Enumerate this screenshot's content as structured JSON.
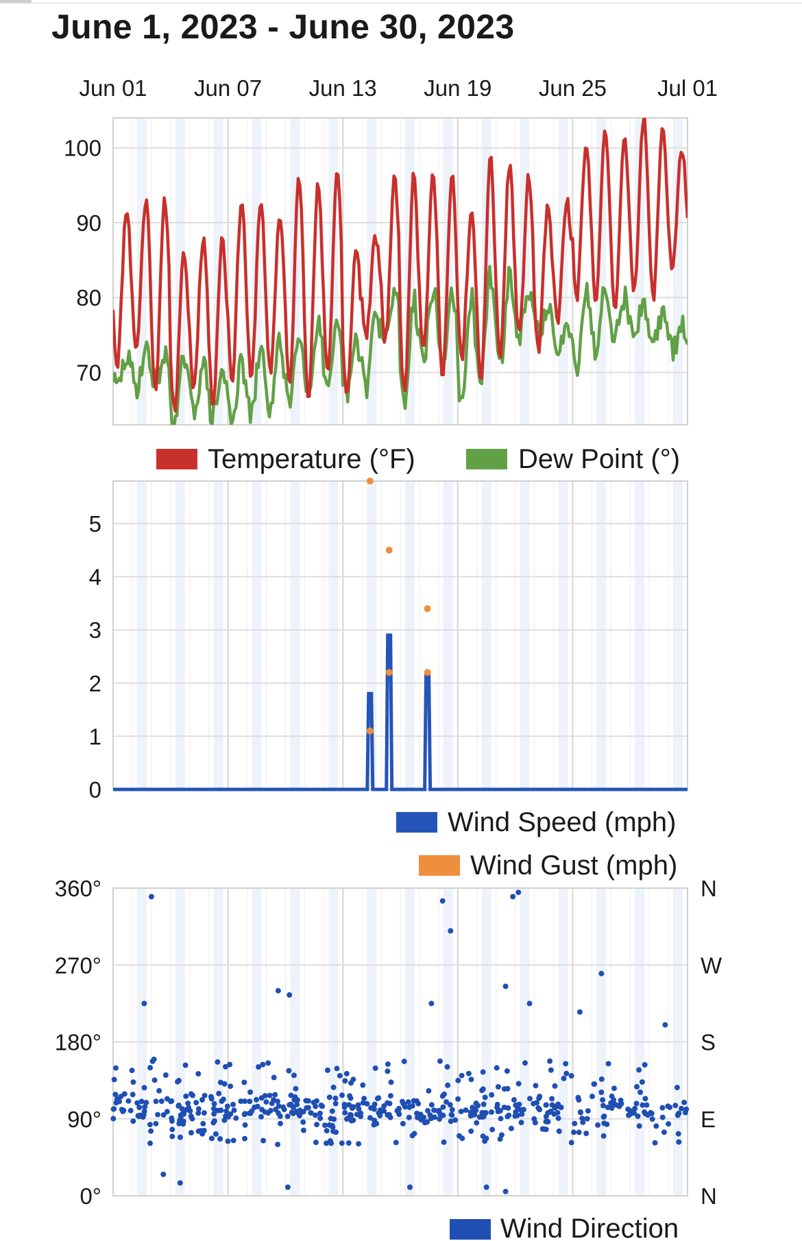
{
  "title": "June 1, 2023 - June 30, 2023",
  "colors": {
    "temperature": "#c8302c",
    "dew_point": "#62a046",
    "wind_speed": "#2454b8",
    "wind_gust": "#ef8f3c",
    "wind_direction": "#1f4fb3",
    "band": "#eef2f9",
    "grid": "#dedede"
  },
  "chart_data": [
    {
      "type": "line",
      "x_axis": {
        "tick_labels": [
          "Jun 01",
          "Jun 07",
          "Jun 13",
          "Jun 19",
          "Jun 25",
          "Jul 01"
        ],
        "range": [
          "2023-06-01",
          "2023-07-01"
        ]
      },
      "yticks": [
        70,
        80,
        90,
        100
      ],
      "ylim": [
        63,
        104
      ],
      "grid": true,
      "legend": "bottom",
      "series": [
        {
          "name": "Temperature (°F)",
          "daily_low": [
            71,
            73,
            68,
            65,
            68,
            66,
            69,
            69,
            70,
            68,
            67,
            70,
            67,
            75,
            74,
            67,
            73,
            70,
            72,
            68,
            72,
            75,
            73,
            77,
            80,
            80,
            79,
            81,
            80,
            84
          ],
          "daily_high": [
            92,
            93,
            93,
            86,
            88,
            88,
            93,
            93,
            91,
            96,
            95,
            97,
            87,
            88,
            96,
            97,
            96,
            96,
            91,
            99,
            98,
            96,
            92,
            93,
            100,
            102,
            101,
            104,
            103,
            100
          ]
        },
        {
          "name": "Dew Point (°)",
          "daily_low": [
            68,
            68,
            69,
            63,
            65,
            64,
            64,
            64,
            65,
            66,
            67,
            67,
            67,
            68,
            74,
            66,
            72,
            71,
            65,
            69,
            71,
            75,
            76,
            72,
            71,
            73,
            75,
            75,
            74,
            73
          ],
          "daily_high": [
            72,
            73,
            72,
            72,
            71,
            70,
            71,
            73,
            74,
            76,
            77,
            76,
            74,
            78,
            81,
            80,
            81,
            81,
            80,
            83,
            83,
            80,
            78,
            77,
            81,
            82,
            80,
            79,
            78,
            76
          ]
        }
      ]
    },
    {
      "type": "line",
      "x_axis": {
        "tick_labels": [
          "Jun 01",
          "Jun 07",
          "Jun 13",
          "Jun 19",
          "Jun 25",
          "Jul 01"
        ],
        "range": [
          "2023-06-01",
          "2023-07-01"
        ]
      },
      "yticks": [
        0,
        1,
        2,
        3,
        4,
        5
      ],
      "ylim": [
        0,
        5.8
      ],
      "grid": true,
      "legend": "bottom-right",
      "series": [
        {
          "name": "Wind Speed (mph)",
          "type": "line",
          "baseline": 0,
          "x": [
            "2023-06-14 10:00",
            "2023-06-15 10:00",
            "2023-06-17 10:00"
          ],
          "y": [
            1.8,
            2.9,
            2.2
          ]
        },
        {
          "name": "Wind Gust (mph)",
          "type": "scatter",
          "x": [
            "2023-06-14 10:00",
            "2023-06-14 10:00",
            "2023-06-15 10:00",
            "2023-06-15 10:00",
            "2023-06-17 10:00",
            "2023-06-17 10:00"
          ],
          "y": [
            1.1,
            5.8,
            2.2,
            4.5,
            2.2,
            3.4
          ]
        }
      ]
    },
    {
      "type": "scatter",
      "x_axis": {
        "tick_labels": [
          "Jun 01",
          "Jun 07",
          "Jun 13",
          "Jun 19",
          "Jun 25",
          "Jul 01"
        ],
        "range": [
          "2023-06-01",
          "2023-07-01"
        ]
      },
      "yticks": [
        "0°",
        "90°",
        "180°",
        "270°",
        "360°"
      ],
      "compass_labels": [
        "N",
        "E",
        "S",
        "W",
        "N"
      ],
      "ylim": [
        0,
        360
      ],
      "grid": true,
      "legend": "bottom-right",
      "series": [
        {
          "name": "Wind Direction",
          "typical_range": [
            60,
            160
          ],
          "central_value": 100,
          "outliers": [
            {
              "x": "2023-06-03 00:00",
              "y": 350
            },
            {
              "x": "2023-06-02 15:00",
              "y": 225
            },
            {
              "x": "2023-06-09 15:00",
              "y": 240
            },
            {
              "x": "2023-06-10 05:00",
              "y": 235
            },
            {
              "x": "2023-06-17 15:00",
              "y": 225
            },
            {
              "x": "2023-06-18 05:00",
              "y": 345
            },
            {
              "x": "2023-06-18 15:00",
              "y": 310
            },
            {
              "x": "2023-06-21 12:00",
              "y": 245
            },
            {
              "x": "2023-06-21 21:00",
              "y": 350
            },
            {
              "x": "2023-06-22 04:00",
              "y": 355
            },
            {
              "x": "2023-06-22 18:00",
              "y": 225
            },
            {
              "x": "2023-06-26 12:00",
              "y": 260
            },
            {
              "x": "2023-06-25 09:00",
              "y": 215
            },
            {
              "x": "2023-06-29 20:00",
              "y": 200
            },
            {
              "x": "2023-06-03 15:00",
              "y": 25
            },
            {
              "x": "2023-06-04 12:00",
              "y": 15
            },
            {
              "x": "2023-06-10 03:00",
              "y": 10
            },
            {
              "x": "2023-06-16 12:00",
              "y": 10
            },
            {
              "x": "2023-06-20 12:00",
              "y": 10
            },
            {
              "x": "2023-06-21 12:00",
              "y": 5
            }
          ]
        }
      ]
    }
  ],
  "legends": {
    "temperature": "Temperature (°F)",
    "dew_point": "Dew Point (°)",
    "wind_speed": "Wind Speed (mph)",
    "wind_gust": "Wind Gust (mph)",
    "wind_direction": "Wind Direction"
  }
}
